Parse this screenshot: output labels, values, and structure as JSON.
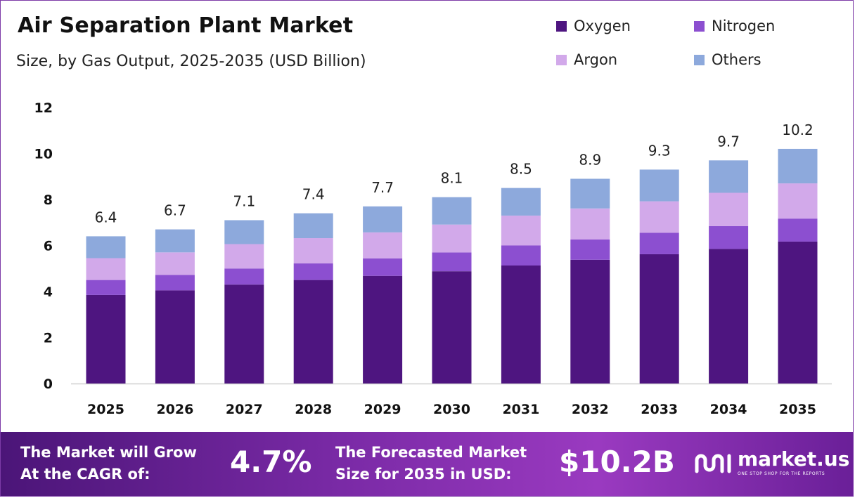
{
  "header": {
    "title": "Air Separation Plant Market",
    "subtitle": "Size, by Gas Output, 2025-2035 (USD Billion)"
  },
  "legend": [
    {
      "label": "Oxygen",
      "color": "#4e1580"
    },
    {
      "label": "Nitrogen",
      "color": "#8c4fd0"
    },
    {
      "label": "Argon",
      "color": "#d2a9ea"
    },
    {
      "label": "Others",
      "color": "#8da9dc"
    }
  ],
  "chart_data": {
    "type": "bar",
    "stacked": true,
    "title": "Air Separation Plant Market",
    "subtitle": "Size, by Gas Output, 2025-2035 (USD Billion)",
    "xlabel": "",
    "ylabel": "",
    "categories": [
      "2025",
      "2026",
      "2027",
      "2028",
      "2029",
      "2030",
      "2031",
      "2032",
      "2033",
      "2034",
      "2035"
    ],
    "series": [
      {
        "name": "Oxygen",
        "color": "#4e1580",
        "values": [
          3.85,
          4.05,
          4.3,
          4.5,
          4.68,
          4.88,
          5.13,
          5.38,
          5.62,
          5.85,
          6.17
        ]
      },
      {
        "name": "Nitrogen",
        "color": "#8c4fd0",
        "values": [
          0.65,
          0.67,
          0.7,
          0.72,
          0.76,
          0.82,
          0.87,
          0.88,
          0.93,
          0.99,
          1.0
        ]
      },
      {
        "name": "Argon",
        "color": "#d2a9ea",
        "values": [
          0.95,
          0.98,
          1.06,
          1.1,
          1.13,
          1.21,
          1.3,
          1.35,
          1.37,
          1.45,
          1.53
        ]
      },
      {
        "name": "Others",
        "color": "#8da9dc",
        "values": [
          0.95,
          1.0,
          1.04,
          1.08,
          1.13,
          1.19,
          1.2,
          1.29,
          1.38,
          1.41,
          1.5
        ]
      }
    ],
    "totals": [
      "6.4",
      "6.7",
      "7.1",
      "7.4",
      "7.7",
      "8.1",
      "8.5",
      "8.9",
      "9.3",
      "9.7",
      "10.2"
    ],
    "ylim": [
      0,
      12
    ],
    "yticks": [
      "0",
      "2",
      "4",
      "6",
      "8",
      "10",
      "12"
    ],
    "grid": false,
    "legend_position": "top-right"
  },
  "footer": {
    "cagr_label_line1": "The Market will Grow",
    "cagr_label_line2": "At the CAGR of:",
    "cagr_value": "4.7%",
    "forecast_label_line1": "The Forecasted Market",
    "forecast_label_line2": "Size for 2035 in USD:",
    "forecast_value": "$10.2B",
    "brand_name": "market.us",
    "brand_tagline": "ONE STOP SHOP FOR THE REPORTS"
  }
}
